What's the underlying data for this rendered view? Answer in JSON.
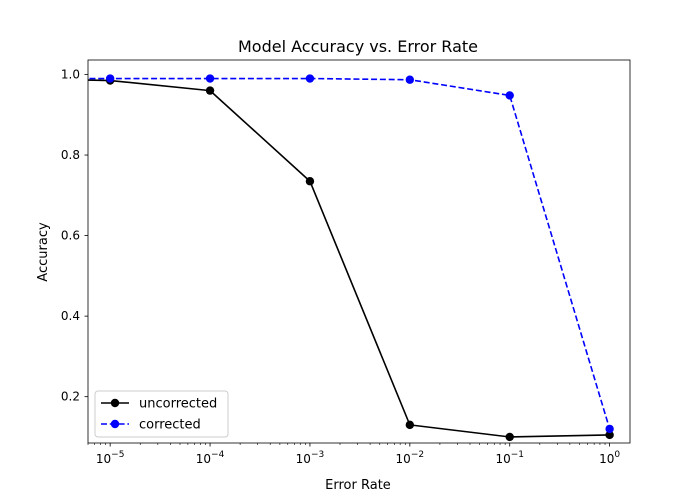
{
  "chart_data": {
    "type": "line",
    "title": "Model Accuracy vs. Error Rate",
    "xlabel": "Error Rate",
    "ylabel": "Accuracy",
    "xscale": "log",
    "xlim": [
      6e-06,
      1.6
    ],
    "ylim": [
      0.085,
      1.036
    ],
    "x_ticks": [
      {
        "base": "10",
        "exp": "−5",
        "value": 1e-05
      },
      {
        "base": "10",
        "exp": "−4",
        "value": 0.0001
      },
      {
        "base": "10",
        "exp": "−3",
        "value": 0.001
      },
      {
        "base": "10",
        "exp": "−2",
        "value": 0.01
      },
      {
        "base": "10",
        "exp": "−1",
        "value": 0.1
      },
      {
        "base": "10",
        "exp": "0",
        "value": 1
      }
    ],
    "y_ticks": [
      {
        "label": "0.2",
        "value": 0.2
      },
      {
        "label": "0.4",
        "value": 0.4
      },
      {
        "label": "0.6",
        "value": 0.6
      },
      {
        "label": "0.8",
        "value": 0.8
      },
      {
        "label": "1.0",
        "value": 1.0
      }
    ],
    "x": [
      1e-06,
      1e-05,
      0.0001,
      0.001,
      0.01,
      0.1,
      1
    ],
    "series": [
      {
        "name": "uncorrected",
        "color": "#000000",
        "linestyle": "solid",
        "values": [
          0.99,
          0.985,
          0.96,
          0.735,
          0.13,
          0.1,
          0.105
        ]
      },
      {
        "name": "corrected",
        "color": "#0000ff",
        "linestyle": "dashed",
        "values": [
          0.99,
          0.99,
          0.99,
          0.99,
          0.987,
          0.948,
          0.12
        ]
      }
    ],
    "grid": false,
    "legend": "lower-left"
  }
}
